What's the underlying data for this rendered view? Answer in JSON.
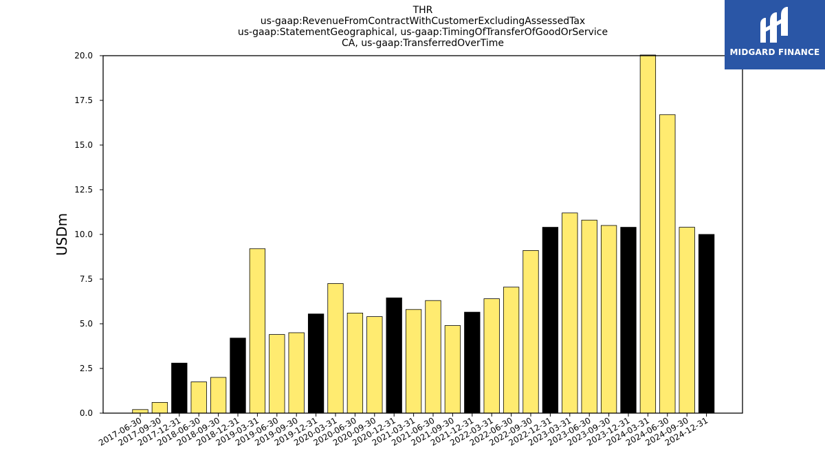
{
  "title_lines": [
    "THR",
    "us-gaap:RevenueFromContractWithCustomerExcludingAssessedTax",
    "us-gaap:StatementGeographical, us-gaap:TimingOfTransferOfGoodOrService",
    "CA, us-gaap:TransferredOverTime"
  ],
  "logo": {
    "text": "MIDGARD FINANCE",
    "color": "#2a56a6"
  },
  "colors": {
    "quarter": "#ffeb70",
    "year_end": "#000000",
    "edge": "#000000"
  },
  "chart_data": {
    "type": "bar",
    "ylabel": "USDm",
    "xlabel": "",
    "ylim": [
      0,
      20
    ],
    "yticks": [
      "0.0",
      "2.5",
      "5.0",
      "7.5",
      "10.0",
      "12.5",
      "15.0",
      "17.5",
      "20.0"
    ],
    "grid": false,
    "categories": [
      "2017-06-30",
      "2017-09-30",
      "2017-12-31",
      "2018-06-30",
      "2018-09-30",
      "2018-12-31",
      "2019-03-31",
      "2019-06-30",
      "2019-09-30",
      "2019-12-31",
      "2020-03-31",
      "2020-06-30",
      "2020-09-30",
      "2020-12-31",
      "2021-03-31",
      "2021-06-30",
      "2021-09-30",
      "2021-12-31",
      "2022-03-31",
      "2022-06-30",
      "2022-09-30",
      "2022-12-31",
      "2023-03-31",
      "2023-06-30",
      "2023-09-30",
      "2023-12-31",
      "2024-03-31",
      "2024-06-30",
      "2024-09-30",
      "2024-12-31"
    ],
    "values": [
      0.2,
      0.6,
      2.8,
      1.75,
      2.0,
      4.2,
      9.2,
      4.4,
      4.5,
      5.55,
      7.25,
      5.6,
      5.4,
      6.45,
      5.8,
      6.3,
      4.9,
      5.65,
      6.4,
      7.05,
      9.1,
      10.4,
      11.2,
      10.8,
      10.5,
      10.4,
      20.1,
      16.7,
      10.4,
      10.0
    ]
  }
}
